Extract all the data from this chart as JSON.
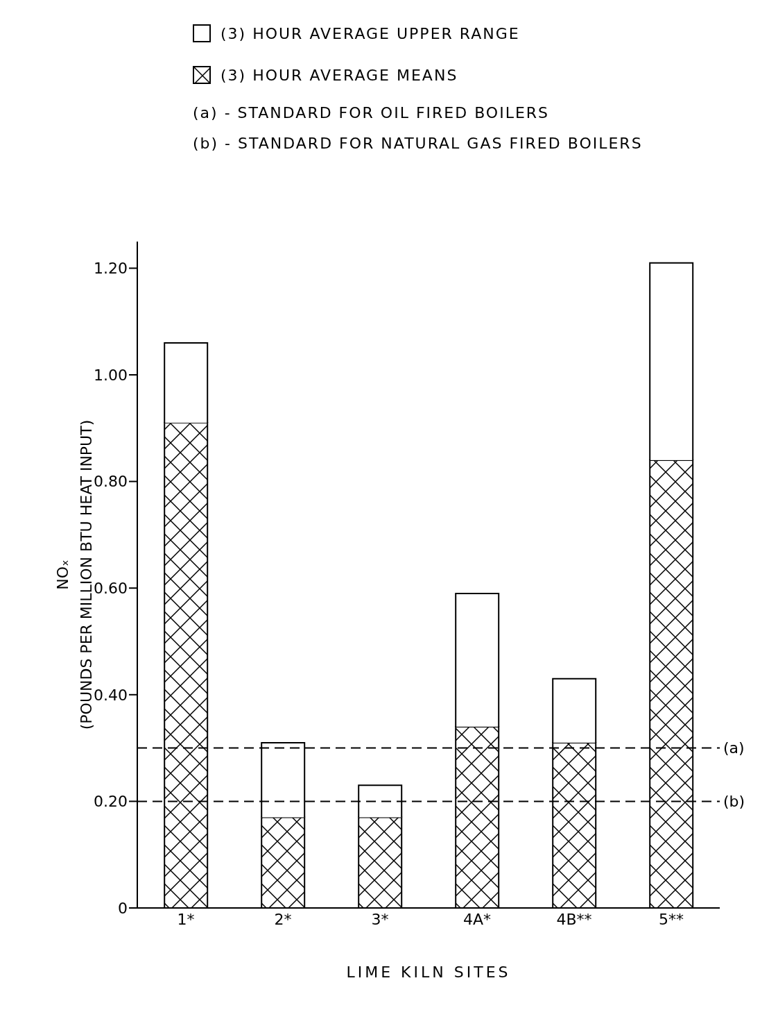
{
  "chart_data": {
    "type": "bar",
    "stacked": true,
    "categories": [
      "1*",
      "2*",
      "3*",
      "4A*",
      "4B**",
      "5**"
    ],
    "series": [
      {
        "name": "(3) HOUR AVERAGE MEANS",
        "color": "#000000",
        "values": [
          0.91,
          0.17,
          0.17,
          0.34,
          0.31,
          0.84
        ]
      },
      {
        "name": "(3) HOUR AVERAGE UPPER RANGE",
        "color": "#ffffff",
        "values": [
          0.15,
          0.14,
          0.06,
          0.25,
          0.12,
          0.37
        ]
      }
    ],
    "ylabel": "NOₓ\n(POUNDS PER MILLION BTU HEAT INPUT)",
    "xlabel": "LIME KILN SITES",
    "ylim": [
      0,
      1.25
    ],
    "yticks": [
      {
        "value": 0,
        "label": "0"
      },
      {
        "value": 0.2,
        "label": "0.20"
      },
      {
        "value": 0.4,
        "label": "0.40"
      },
      {
        "value": 0.6,
        "label": "0.60"
      },
      {
        "value": 0.8,
        "label": "0.80"
      },
      {
        "value": 1,
        "label": "1.00"
      },
      {
        "value": 1.2,
        "label": "1.20"
      }
    ],
    "ref_lines": [
      {
        "axis": "y",
        "value": 0.3,
        "label": "(a)",
        "line_style": "dashed"
      },
      {
        "axis": "y",
        "value": 0.2,
        "label": "(b)",
        "line_style": "dashed"
      }
    ],
    "annotations": [
      "(a) - STANDARD FOR OIL FIRED BOILERS",
      "(b) - STANDARD FOR NATURAL GAS FIRED BOILERS"
    ],
    "legend": "top left",
    "grid": false
  }
}
